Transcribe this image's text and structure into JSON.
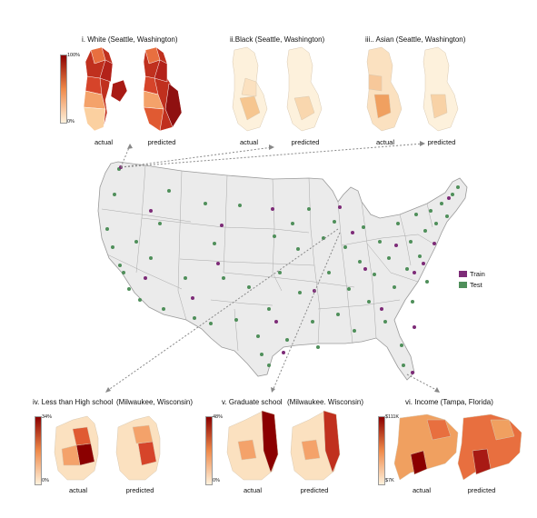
{
  "legend": {
    "train": "Train",
    "test": "Test",
    "train_color": "#7d2b77",
    "test_color": "#4f8f5a"
  },
  "panels": [
    {
      "id": "i",
      "title": "i. White (Seattle, Washington)",
      "actual": "actual",
      "predicted": "predicted",
      "min": "0%",
      "max": "100%"
    },
    {
      "id": "ii",
      "title": "ii.Black (Seattle, Washington)",
      "actual": "actual",
      "predicted": "predicted"
    },
    {
      "id": "iii",
      "title": "iii.. Asian (Seattle, Washington)",
      "actual": "actual",
      "predicted": "predicted"
    },
    {
      "id": "iv",
      "title": "iv. Less than High school",
      "title2": "(Milwaukee, Wisconsin)",
      "actual": "actual",
      "predicted": "predicted",
      "min": "0%",
      "max": "34%"
    },
    {
      "id": "v",
      "title": "v. Graduate school",
      "title2": "(Milwaukee. Wisconsin)",
      "actual": "actual",
      "predicted": "predicted",
      "min": "0%",
      "max": "48%"
    },
    {
      "id": "vi",
      "title": "vi. Income (Tampa, Florida)",
      "actual": "actual",
      "predicted": "predicted",
      "min": "$7K",
      "max": "$111K"
    }
  ]
}
